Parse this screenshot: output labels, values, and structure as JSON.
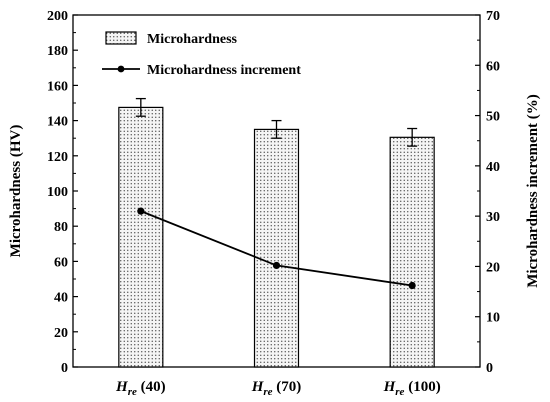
{
  "chart_data": {
    "type": "bar+line",
    "categories": [
      {
        "symbol": "H",
        "subscript": "re",
        "value": "(40)"
      },
      {
        "symbol": "H",
        "subscript": "re",
        "value": "(70)"
      },
      {
        "symbol": "H",
        "subscript": "re",
        "value": "(100)"
      }
    ],
    "series": [
      {
        "name": "Microhardness",
        "type": "bar",
        "axis": "left",
        "values": [
          147.5,
          135,
          130.5
        ],
        "errors": [
          5,
          5,
          5
        ],
        "pattern": "dotted"
      },
      {
        "name": "Microhardness increment",
        "type": "line",
        "axis": "right",
        "values": [
          31,
          20.2,
          16.2
        ],
        "marker": "circle"
      }
    ],
    "ylabel": "Microhardness (HV)",
    "ylabel_right": "Microhardness increment (%)",
    "ylim": [
      0,
      200
    ],
    "ylim_right": [
      0,
      70
    ],
    "yticks": [
      "0",
      "20",
      "40",
      "60",
      "80",
      "100",
      "120",
      "140",
      "160",
      "180",
      "200"
    ],
    "yticks_right": [
      "0",
      "10",
      "20",
      "30",
      "40",
      "50",
      "60",
      "70"
    ],
    "grid": false,
    "legend_position": "top-left",
    "colors": {
      "bar_fill": "#f2f2f2",
      "dots": "#333333",
      "line": "#000000"
    }
  }
}
